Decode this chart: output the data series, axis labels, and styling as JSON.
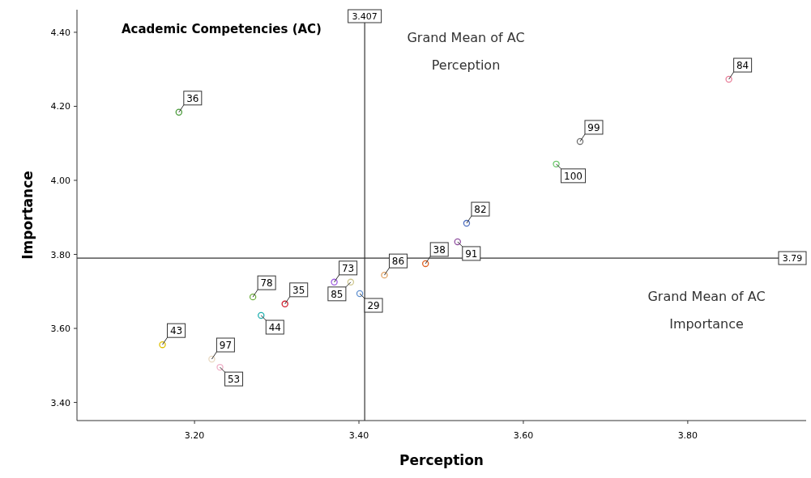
{
  "chart_data": {
    "type": "scatter",
    "title": "Academic Competencies (AC)",
    "xlabel": "Perception",
    "ylabel": "Importance",
    "x": [
      3.181,
      3.85,
      3.669,
      3.64,
      3.531,
      3.52,
      3.481,
      3.431,
      3.401,
      3.37,
      3.39,
      3.31,
      3.281,
      3.271,
      3.161,
      3.221,
      3.231
    ],
    "series": [
      {
        "values": [
          4.184,
          4.273,
          4.105,
          4.044,
          3.884,
          3.834,
          3.775,
          3.744,
          3.694,
          3.725,
          3.725,
          3.666,
          3.635,
          3.685,
          3.556,
          3.517,
          3.495
        ],
        "colors": [
          "#4a9a3a",
          "#e87f9a",
          "#707070",
          "#6cc86c",
          "#5070c0",
          "#9050a0",
          "#e06020",
          "#e0a060",
          "#6090d0",
          "#a060e0",
          "#d0c890",
          "#d02030",
          "#20b0b0",
          "#70b040",
          "#e0c000",
          "#e8d8c0",
          "#f0b0c8"
        ]
      }
    ],
    "xlim": [
      3.057,
      3.944
    ],
    "ylim": [
      3.351,
      4.461
    ],
    "xticks": [
      {
        "value": 3.2,
        "label": "3.20"
      },
      {
        "value": 3.4,
        "label": "3.40"
      },
      {
        "value": 3.6,
        "label": "3.60"
      },
      {
        "value": 3.8,
        "label": "3.80"
      }
    ],
    "yticks": [
      {
        "value": 3.4,
        "label": "3.40"
      },
      {
        "value": 3.6,
        "label": "3.60"
      },
      {
        "value": 3.8,
        "label": "3.80"
      },
      {
        "value": 4.0,
        "label": "4.00"
      },
      {
        "value": 4.2,
        "label": "4.20"
      },
      {
        "value": 4.4,
        "label": "4.40"
      }
    ],
    "marker": "circle",
    "grid": false,
    "ref_lines": [
      {
        "axis": "x",
        "value": 3.407,
        "label": "3.407",
        "color": "#333333"
      },
      {
        "axis": "y",
        "value": 3.79,
        "label": "3.79",
        "color": "#333333"
      }
    ],
    "annotations": [
      {
        "text": "36",
        "x": 3.181,
        "y": 4.184
      },
      {
        "text": "84",
        "x": 3.85,
        "y": 4.273
      },
      {
        "text": "99",
        "x": 3.669,
        "y": 4.105
      },
      {
        "text": "100",
        "x": 3.64,
        "y": 4.044
      },
      {
        "text": "82",
        "x": 3.531,
        "y": 3.884
      },
      {
        "text": "91",
        "x": 3.52,
        "y": 3.834
      },
      {
        "text": "38",
        "x": 3.481,
        "y": 3.775
      },
      {
        "text": "86",
        "x": 3.431,
        "y": 3.744
      },
      {
        "text": "29",
        "x": 3.401,
        "y": 3.694
      },
      {
        "text": "73",
        "x": 3.37,
        "y": 3.725
      },
      {
        "text": "85",
        "x": 3.39,
        "y": 3.725
      },
      {
        "text": "35",
        "x": 3.31,
        "y": 3.666
      },
      {
        "text": "44",
        "x": 3.281,
        "y": 3.635
      },
      {
        "text": "78",
        "x": 3.271,
        "y": 3.685
      },
      {
        "text": "43",
        "x": 3.161,
        "y": 3.556
      },
      {
        "text": "97",
        "x": 3.221,
        "y": 3.517
      },
      {
        "text": "53",
        "x": 3.231,
        "y": 3.495
      },
      "Grand Mean of AC Perception",
      "Grand Mean of AC Importance"
    ]
  }
}
